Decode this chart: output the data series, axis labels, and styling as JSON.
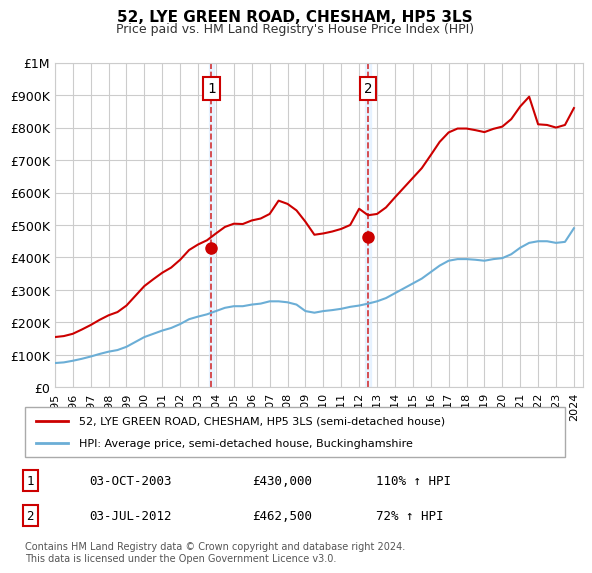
{
  "title": "52, LYE GREEN ROAD, CHESHAM, HP5 3LS",
  "subtitle": "Price paid vs. HM Land Registry's House Price Index (HPI)",
  "xlabel": "",
  "ylabel": "",
  "ylim": [
    0,
    1000000
  ],
  "yticks": [
    0,
    100000,
    200000,
    300000,
    400000,
    500000,
    600000,
    700000,
    800000,
    900000,
    1000000
  ],
  "ytick_labels": [
    "£0",
    "£100K",
    "£200K",
    "£300K",
    "£400K",
    "£500K",
    "£600K",
    "£700K",
    "£800K",
    "£900K",
    "£1M"
  ],
  "hpi_color": "#6baed6",
  "price_color": "#cc0000",
  "marker_color": "#cc0000",
  "sale1_date_num": 2003.75,
  "sale1_price": 430000,
  "sale1_label": "1",
  "sale2_date_num": 2012.5,
  "sale2_price": 462500,
  "sale2_label": "2",
  "legend_line1": "52, LYE GREEN ROAD, CHESHAM, HP5 3LS (semi-detached house)",
  "legend_line2": "HPI: Average price, semi-detached house, Buckinghamshire",
  "table_row1": [
    "1",
    "03-OCT-2003",
    "£430,000",
    "110% ↑ HPI"
  ],
  "table_row2": [
    "2",
    "03-JUL-2012",
    "£462,500",
    "72% ↑ HPI"
  ],
  "footnote": "Contains HM Land Registry data © Crown copyright and database right 2024.\nThis data is licensed under the Open Government Licence v3.0.",
  "bg_color": "#ffffff",
  "grid_color": "#cccccc",
  "highlight_bg": "#ddeeff"
}
